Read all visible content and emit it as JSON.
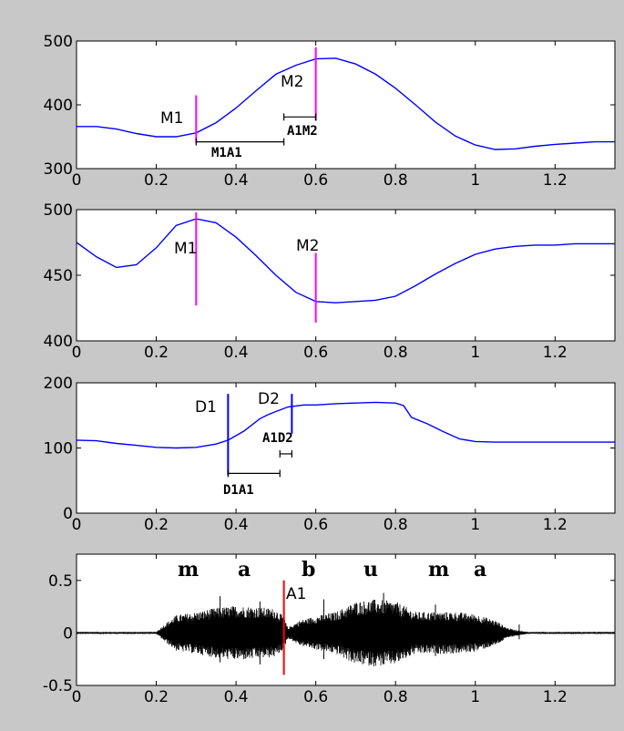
{
  "chart_data": [
    {
      "type": "line",
      "xlim": [
        0,
        1.35
      ],
      "ylim": [
        300,
        500
      ],
      "xticks": [
        "0",
        "0.2",
        "0.4",
        "0.6",
        "0.8",
        "1",
        "1.2"
      ],
      "yticks": [
        "300",
        "400",
        "500"
      ],
      "series": [
        {
          "color": "#0000ff",
          "x": [
            0,
            0.05,
            0.1,
            0.15,
            0.2,
            0.25,
            0.3,
            0.35,
            0.4,
            0.45,
            0.5,
            0.55,
            0.6,
            0.65,
            0.7,
            0.75,
            0.8,
            0.85,
            0.9,
            0.95,
            1.0,
            1.05,
            1.1,
            1.15,
            1.2,
            1.25,
            1.3,
            1.35
          ],
          "y": [
            366,
            366,
            362,
            355,
            350,
            350,
            356,
            372,
            395,
            422,
            448,
            462,
            472,
            473,
            464,
            448,
            426,
            400,
            373,
            351,
            337,
            330,
            331,
            335,
            338,
            340,
            342,
            342
          ]
        }
      ],
      "markers": [
        {
          "label": "M1",
          "x": 0.3,
          "y_range": [
            340,
            415
          ],
          "color": "#ff00ff"
        },
        {
          "label": "M2",
          "x": 0.6,
          "y_range": [
            375,
            490
          ],
          "color": "#ff00ff"
        }
      ],
      "intervals": [
        {
          "label": "M1A1",
          "x_range": [
            0.3,
            0.52
          ],
          "y": 342
        },
        {
          "label": "A1M2",
          "x_range": [
            0.52,
            0.6
          ],
          "y": 381
        }
      ]
    },
    {
      "type": "line",
      "xlim": [
        0,
        1.35
      ],
      "ylim": [
        400,
        500
      ],
      "xticks": [
        "0",
        "0.2",
        "0.4",
        "0.6",
        "0.8",
        "1",
        "1.2"
      ],
      "yticks": [
        "400",
        "450",
        "500"
      ],
      "series": [
        {
          "color": "#0000ff",
          "x": [
            0,
            0.05,
            0.1,
            0.15,
            0.2,
            0.25,
            0.3,
            0.35,
            0.4,
            0.45,
            0.5,
            0.55,
            0.6,
            0.65,
            0.7,
            0.75,
            0.8,
            0.85,
            0.9,
            0.95,
            1.0,
            1.05,
            1.1,
            1.15,
            1.2,
            1.25,
            1.3,
            1.35
          ],
          "y": [
            475,
            464,
            456,
            458,
            471,
            488,
            493,
            490,
            479,
            465,
            450,
            437,
            430,
            429,
            430,
            431,
            434,
            442,
            451,
            459,
            466,
            470,
            472,
            473,
            473,
            474,
            474,
            474
          ]
        }
      ],
      "markers": [
        {
          "label": "M1",
          "x": 0.3,
          "y_range": [
            427,
            498
          ],
          "color": "#ff00ff"
        },
        {
          "label": "M2",
          "x": 0.6,
          "y_range": [
            414,
            467
          ],
          "color": "#ff00ff"
        }
      ]
    },
    {
      "type": "line",
      "xlim": [
        0,
        1.35
      ],
      "ylim": [
        0,
        200
      ],
      "xticks": [
        "0",
        "0.2",
        "0.4",
        "0.6",
        "0.8",
        "1",
        "1.2"
      ],
      "yticks": [
        "0",
        "100",
        "200"
      ],
      "series": [
        {
          "color": "#0000ff",
          "x": [
            0,
            0.05,
            0.1,
            0.15,
            0.2,
            0.25,
            0.3,
            0.35,
            0.38,
            0.42,
            0.46,
            0.48,
            0.5,
            0.53,
            0.57,
            0.6,
            0.65,
            0.7,
            0.75,
            0.8,
            0.82,
            0.84,
            0.88,
            0.92,
            0.96,
            1.0,
            1.05,
            1.1,
            1.2,
            1.35
          ],
          "y": [
            112,
            111,
            107,
            104,
            101,
            100,
            101,
            106,
            112,
            126,
            145,
            151,
            156,
            163,
            166,
            166,
            168,
            169,
            170,
            169,
            165,
            147,
            137,
            125,
            114,
            110,
            109,
            109,
            109,
            109
          ]
        }
      ],
      "markers": [
        {
          "label": "D1",
          "x": 0.38,
          "y_range": [
            58,
            183
          ],
          "color": "#0000ff"
        },
        {
          "label": "D2",
          "x": 0.54,
          "y_range": [
            122,
            183
          ],
          "color": "#0000ff"
        }
      ],
      "intervals": [
        {
          "label": "D1A1",
          "x_range": [
            0.38,
            0.51
          ],
          "y": 61
        },
        {
          "label": "A1D2",
          "x_range": [
            0.51,
            0.54
          ],
          "y": 91
        }
      ]
    },
    {
      "type": "line",
      "xlim": [
        0,
        1.35
      ],
      "ylim": [
        -0.5,
        0.75
      ],
      "xticks": [
        "0",
        "0.2",
        "0.4",
        "0.6",
        "0.8",
        "1",
        "1.2"
      ],
      "yticks": [
        "-0.5",
        "0",
        "0.5"
      ],
      "series": [
        {
          "color": "#000000",
          "description": "speech waveform",
          "envelope_x": [
            0,
            0.2,
            0.22,
            0.25,
            0.3,
            0.35,
            0.4,
            0.45,
            0.5,
            0.52,
            0.53,
            0.56,
            0.6,
            0.65,
            0.7,
            0.75,
            0.8,
            0.85,
            0.9,
            0.95,
            1.0,
            1.05,
            1.08,
            1.1,
            1.13,
            1.35
          ],
          "envelope_y": [
            0.01,
            0.01,
            0.08,
            0.17,
            0.2,
            0.24,
            0.26,
            0.25,
            0.23,
            0.15,
            0.05,
            0.12,
            0.16,
            0.2,
            0.3,
            0.32,
            0.3,
            0.2,
            0.2,
            0.2,
            0.18,
            0.12,
            0.05,
            0.03,
            0.01,
            0.01
          ]
        }
      ],
      "markers": [
        {
          "label": "A1",
          "x": 0.52,
          "y_range": [
            -0.4,
            0.5
          ],
          "color": "#ff0000"
        }
      ],
      "phonemes": [
        {
          "text": "m",
          "x": 0.25
        },
        {
          "text": "a",
          "x": 0.42
        },
        {
          "text": "b",
          "x": 0.57
        },
        {
          "text": "u",
          "x": 0.72
        },
        {
          "text": "m",
          "x": 0.9
        },
        {
          "text": "a",
          "x": 1.0
        }
      ]
    }
  ]
}
